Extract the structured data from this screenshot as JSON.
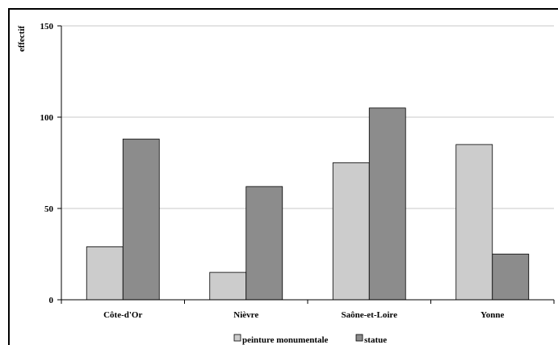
{
  "chart_data": {
    "type": "bar",
    "title": "",
    "xlabel": "",
    "ylabel": "effectif",
    "ylim": [
      0,
      150
    ],
    "yticks": [
      0,
      50,
      100,
      150
    ],
    "grid": true,
    "legend_position": "bottom",
    "categories": [
      "Côte-d'Or",
      "Nièvre",
      "Saône-et-Loire",
      "Yonne"
    ],
    "series": [
      {
        "name": "peinture monumentale",
        "color": "#cccccc",
        "values": [
          29,
          15,
          75,
          85
        ]
      },
      {
        "name": "statue",
        "color": "#8c8c8c",
        "values": [
          88,
          62,
          105,
          25
        ]
      }
    ]
  }
}
